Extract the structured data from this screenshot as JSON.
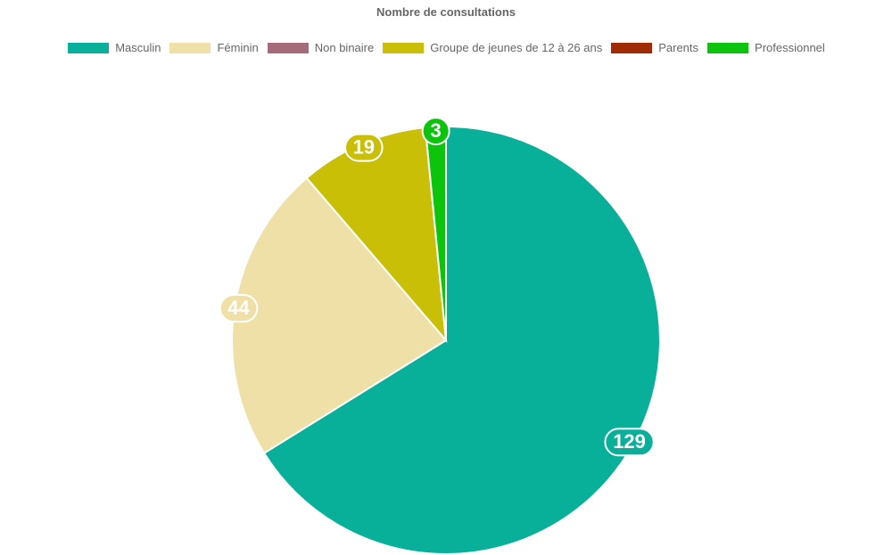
{
  "chart_data": {
    "type": "pie",
    "title": "Nombre de consultations",
    "categories": [
      "Masculin",
      "Féminin",
      "Non binaire",
      "Groupe de jeunes de 12 à 26 ans",
      "Parents",
      "Professionnel"
    ],
    "values": [
      129,
      44,
      0,
      19,
      0,
      3
    ],
    "colors": [
      "#08b09a",
      "#efe0a8",
      "#a56b7b",
      "#c8bf06",
      "#a02c05",
      "#0cc40c"
    ],
    "data_labels": [
      "129",
      "44",
      "",
      "19",
      "",
      "3"
    ],
    "legend_position": "top",
    "start_angle_deg": 0,
    "direction": "clockwise"
  }
}
